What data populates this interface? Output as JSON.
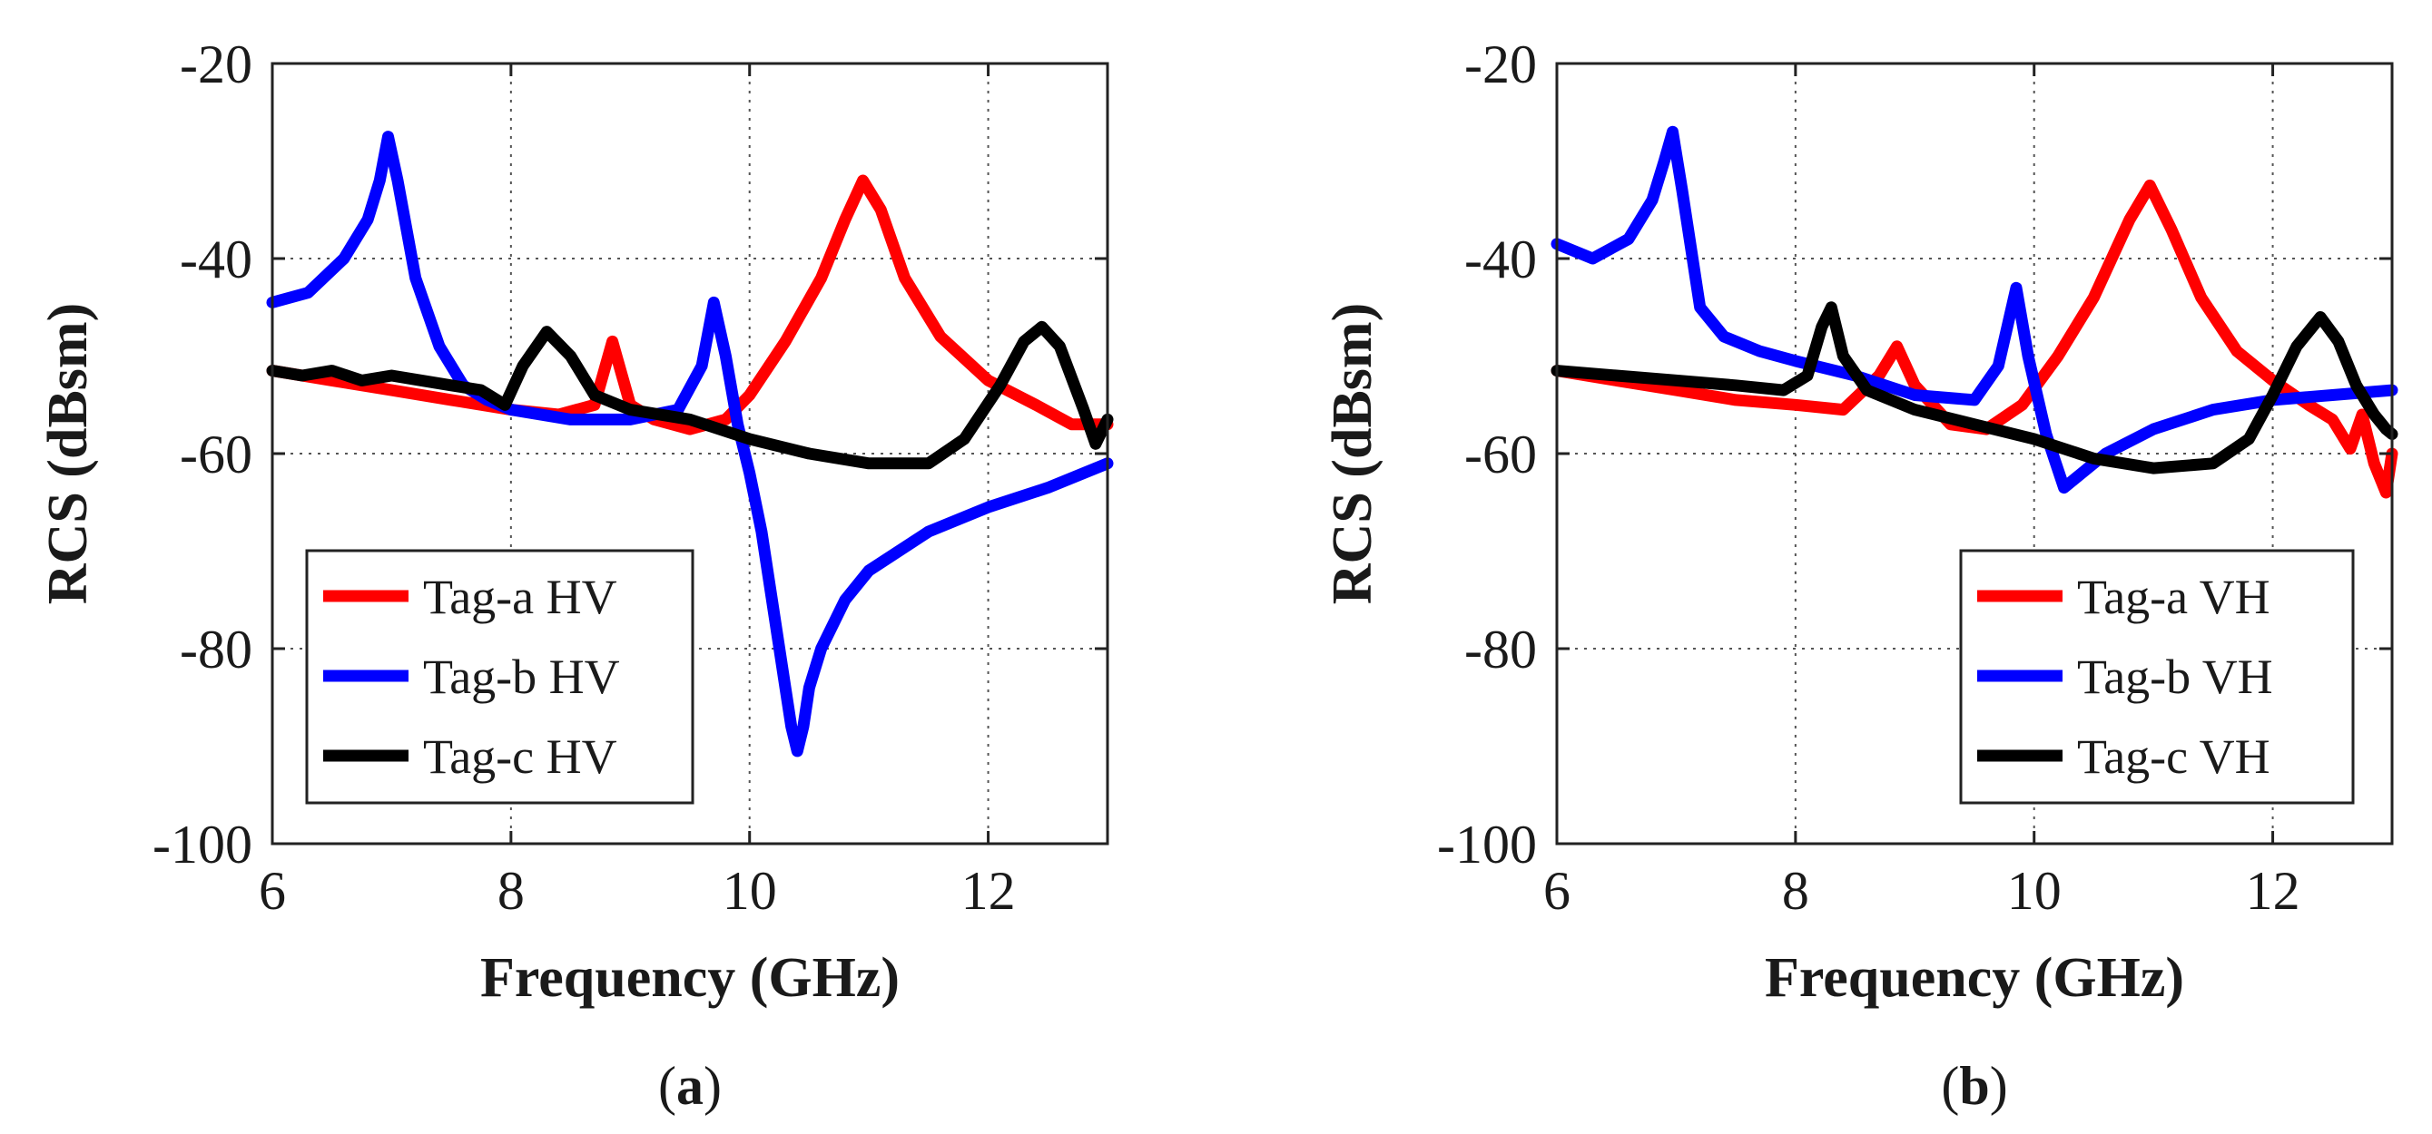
{
  "chart_data": [
    {
      "type": "line",
      "panel": "a",
      "caption_open": "(",
      "caption_letter": "a",
      "caption_close": ")",
      "xlabel": "Frequency (GHz)",
      "ylabel": "RCS (dBsm)",
      "xlim": [
        6,
        13
      ],
      "ylim": [
        -100,
        -20
      ],
      "xticks": [
        6,
        8,
        10,
        12
      ],
      "yticks": [
        -20,
        -40,
        -60,
        -80,
        -100
      ],
      "grid": true,
      "legend_position": "bottom-left",
      "series": [
        {
          "name": "Tag-a HV",
          "color": "#ff0000",
          "x": [
            6,
            6.5,
            7,
            7.5,
            8,
            8.4,
            8.7,
            8.85,
            9.0,
            9.2,
            9.5,
            9.8,
            10.0,
            10.3,
            10.6,
            10.8,
            10.95,
            11.1,
            11.3,
            11.6,
            12.0,
            12.4,
            12.7,
            13.0
          ],
          "y": [
            -51.5,
            -52.5,
            -53.5,
            -54.5,
            -55.5,
            -56,
            -55,
            -48.5,
            -55,
            -56.5,
            -57.5,
            -56.5,
            -54,
            -48.5,
            -42,
            -36,
            -32,
            -35,
            -42,
            -48,
            -52.5,
            -55,
            -57,
            -57
          ]
        },
        {
          "name": "Tag-b HV",
          "color": "#0000ff",
          "x": [
            6,
            6.3,
            6.6,
            6.8,
            6.9,
            6.97,
            7.05,
            7.2,
            7.4,
            7.6,
            7.8,
            8.0,
            8.5,
            9.0,
            9.4,
            9.6,
            9.7,
            9.8,
            9.9,
            10.0,
            10.1,
            10.2,
            10.3,
            10.35,
            10.4,
            10.45,
            10.5,
            10.6,
            10.8,
            11.0,
            11.5,
            12.0,
            12.5,
            13.0
          ],
          "y": [
            -44.5,
            -43.5,
            -40,
            -36,
            -32,
            -27.5,
            -32,
            -42,
            -49,
            -53,
            -54.5,
            -55.5,
            -56.5,
            -56.5,
            -55.5,
            -51,
            -44.5,
            -50,
            -57,
            -62,
            -68,
            -76,
            -84,
            -88,
            -90.5,
            -88,
            -84,
            -80,
            -75,
            -72,
            -68,
            -65.5,
            -63.5,
            -61
          ]
        },
        {
          "name": "Tag-c HV",
          "color": "#000000",
          "x": [
            6,
            6.25,
            6.5,
            6.75,
            7.0,
            7.25,
            7.5,
            7.75,
            7.95,
            8.1,
            8.3,
            8.5,
            8.7,
            9.0,
            9.5,
            10.0,
            10.5,
            11.0,
            11.5,
            11.8,
            12.1,
            12.3,
            12.45,
            12.6,
            12.8,
            12.9,
            13.0
          ],
          "y": [
            -51.5,
            -52,
            -51.5,
            -52.5,
            -52,
            -52.5,
            -53,
            -53.5,
            -55,
            -51,
            -47.5,
            -50,
            -54,
            -55.5,
            -56.5,
            -58.5,
            -60,
            -61,
            -61,
            -58.5,
            -53,
            -48.5,
            -47,
            -49,
            -55.5,
            -59,
            -56.5
          ]
        }
      ]
    },
    {
      "type": "line",
      "panel": "b",
      "caption_open": "(",
      "caption_letter": "b",
      "caption_close": ")",
      "xlabel": "Frequency (GHz)",
      "ylabel": "RCS (dBsm)",
      "xlim": [
        6,
        13
      ],
      "ylim": [
        -100,
        -20
      ],
      "xticks": [
        6,
        8,
        10,
        12
      ],
      "yticks": [
        -20,
        -40,
        -60,
        -80,
        -100
      ],
      "grid": true,
      "legend_position": "bottom-right",
      "series": [
        {
          "name": "Tag-a VH",
          "color": "#ff0000",
          "x": [
            6,
            6.5,
            7,
            7.5,
            8,
            8.4,
            8.7,
            8.85,
            9.0,
            9.3,
            9.6,
            9.9,
            10.2,
            10.5,
            10.8,
            10.97,
            11.15,
            11.4,
            11.7,
            12.0,
            12.3,
            12.5,
            12.65,
            12.75,
            12.85,
            12.95,
            13.0
          ],
          "y": [
            -51.5,
            -52.5,
            -53.5,
            -54.5,
            -55,
            -55.5,
            -52,
            -49,
            -53,
            -57,
            -57.5,
            -55,
            -50,
            -44,
            -36,
            -32.5,
            -37,
            -44,
            -49.5,
            -52.5,
            -55,
            -56.5,
            -59.5,
            -56,
            -61,
            -64,
            -60
          ]
        },
        {
          "name": "Tag-b VH",
          "color": "#0000ff",
          "x": [
            6,
            6.3,
            6.6,
            6.8,
            6.9,
            6.97,
            7.05,
            7.2,
            7.4,
            7.7,
            8.0,
            8.5,
            9.0,
            9.5,
            9.7,
            9.85,
            9.95,
            10.1,
            10.25,
            10.4,
            10.6,
            11.0,
            11.5,
            12.0,
            12.5,
            13.0
          ],
          "y": [
            -38.5,
            -40,
            -38,
            -34,
            -30,
            -27,
            -33,
            -45,
            -48,
            -49.5,
            -50.5,
            -52,
            -54,
            -54.5,
            -51,
            -43,
            -50,
            -58,
            -63.5,
            -62,
            -60,
            -57.5,
            -55.5,
            -54.5,
            -54,
            -53.5
          ]
        },
        {
          "name": "Tag-c VH",
          "color": "#000000",
          "x": [
            6,
            6.5,
            7,
            7.5,
            7.9,
            8.1,
            8.22,
            8.3,
            8.4,
            8.6,
            9.0,
            9.5,
            10.0,
            10.5,
            11.0,
            11.5,
            11.8,
            12.0,
            12.2,
            12.4,
            12.55,
            12.7,
            12.85,
            12.95,
            13.0
          ],
          "y": [
            -51.5,
            -52,
            -52.5,
            -53,
            -53.5,
            -52,
            -47,
            -45,
            -50,
            -53.5,
            -55.5,
            -57,
            -58.5,
            -60.5,
            -61.5,
            -61,
            -58.5,
            -54,
            -49,
            -46,
            -48.5,
            -53,
            -56,
            -57.5,
            -58
          ]
        }
      ]
    }
  ]
}
